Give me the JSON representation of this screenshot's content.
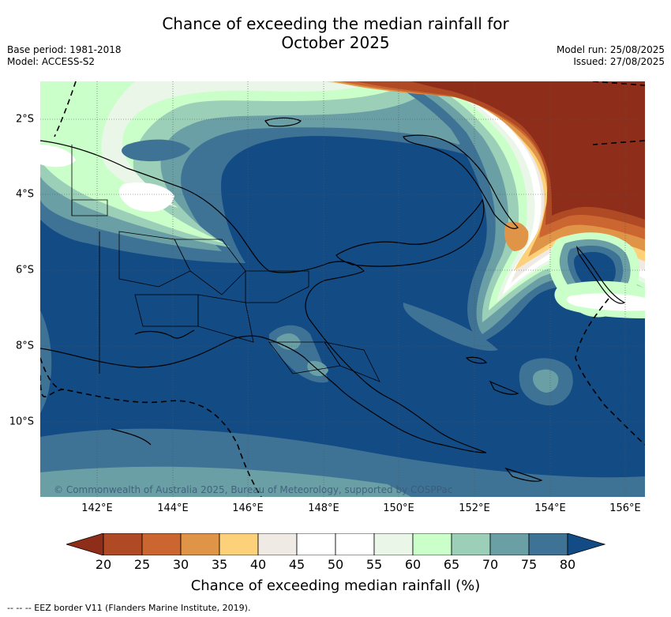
{
  "title_line1": "Chance of exceeding the median rainfall for",
  "title_line2": "October 2025",
  "meta_left": {
    "base_period": "Base period: 1981-2018",
    "model": "Model: ACCESS-S2"
  },
  "meta_right": {
    "model_run": "Model run: 25/08/2025",
    "issued": "Issued: 27/08/2025"
  },
  "map": {
    "lon_range": [
      140.6,
      156.6
    ],
    "lat_range": [
      -12.0,
      -1.0
    ],
    "x_ticks": [
      "142°E",
      "144°E",
      "146°E",
      "148°E",
      "150°E",
      "152°E",
      "154°E",
      "156°E"
    ],
    "y_ticks": [
      "2°S",
      "4°S",
      "6°S",
      "8°S",
      "10°S"
    ],
    "copyright": "© Commonwealth of Australia 2025, Bureau of Meteorology, supported by COSPPac",
    "colors": {
      "ocean_base": "#134b85",
      "grid": "#555555"
    }
  },
  "colorbar": {
    "ticks": [
      "20",
      "25",
      "30",
      "35",
      "40",
      "45",
      "50",
      "55",
      "60",
      "65",
      "70",
      "75",
      "80"
    ],
    "colors": [
      "#8e2d19",
      "#b04a24",
      "#cc6630",
      "#e09447",
      "#fdd17a",
      "#efeae4",
      "#ffffff",
      "#ffffff",
      "#eaf6e8",
      "#caffca",
      "#9ccfb8",
      "#6b9fa6",
      "#3f7396",
      "#134b85"
    ],
    "label": "Chance of exceeding median rainfall (%)"
  },
  "footnote": "--  --  -- EEZ border V11 (Flanders Marine Institute, 2019)."
}
